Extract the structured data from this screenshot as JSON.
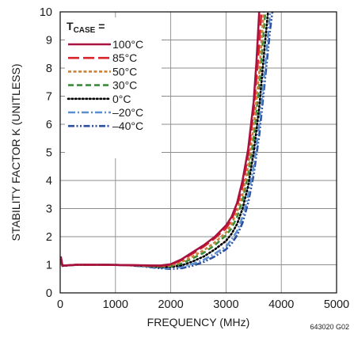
{
  "chart_data": {
    "type": "line",
    "xlabel": "FREQUENCY (MHz)",
    "ylabel": "STABILITY FACTOR K (UNITLESS)",
    "xlim": [
      0,
      5000
    ],
    "ylim": [
      0,
      10
    ],
    "x_ticks": [
      "0",
      "1000",
      "2000",
      "3000",
      "4000",
      "5000"
    ],
    "y_ticks": [
      "0",
      "1",
      "2",
      "3",
      "4",
      "5",
      "6",
      "7",
      "8",
      "9",
      "10"
    ],
    "grid": true,
    "legend_title_main": "T",
    "legend_title_sub": "CASE",
    "legend_title_suffix": " =",
    "legend_position": "top-left",
    "figure_id": "643020 G02",
    "series": [
      {
        "name": "100°C",
        "color": "#a8123e",
        "dash": "solid",
        "points": [
          [
            10,
            1.3
          ],
          [
            40,
            0.97
          ],
          [
            300,
            1.0
          ],
          [
            800,
            1.0
          ],
          [
            1200,
            0.99
          ],
          [
            1500,
            0.98
          ],
          [
            1800,
            0.97
          ],
          [
            2000,
            1.02
          ],
          [
            2200,
            1.2
          ],
          [
            2400,
            1.45
          ],
          [
            2600,
            1.7
          ],
          [
            2800,
            2.0
          ],
          [
            3000,
            2.4
          ],
          [
            3100,
            2.7
          ],
          [
            3200,
            3.2
          ],
          [
            3300,
            4.0
          ],
          [
            3400,
            5.1
          ],
          [
            3500,
            6.8
          ],
          [
            3550,
            8.2
          ],
          [
            3600,
            10.0
          ]
        ]
      },
      {
        "name": "85°C",
        "color": "#d8232a",
        "dash": "long-dash",
        "points": [
          [
            10,
            1.28
          ],
          [
            40,
            0.97
          ],
          [
            300,
            1.0
          ],
          [
            800,
            1.0
          ],
          [
            1200,
            0.99
          ],
          [
            1500,
            0.98
          ],
          [
            1800,
            0.96
          ],
          [
            2000,
            1.0
          ],
          [
            2200,
            1.17
          ],
          [
            2400,
            1.4
          ],
          [
            2600,
            1.65
          ],
          [
            2800,
            1.95
          ],
          [
            3000,
            2.3
          ],
          [
            3100,
            2.6
          ],
          [
            3200,
            3.1
          ],
          [
            3300,
            3.8
          ],
          [
            3400,
            4.9
          ],
          [
            3500,
            6.5
          ],
          [
            3580,
            8.3
          ],
          [
            3640,
            10.0
          ]
        ]
      },
      {
        "name": "50°C",
        "color": "#c8823a",
        "dash": "short-dash",
        "points": [
          [
            10,
            1.25
          ],
          [
            40,
            0.97
          ],
          [
            300,
            1.0
          ],
          [
            800,
            1.0
          ],
          [
            1200,
            0.99
          ],
          [
            1500,
            0.97
          ],
          [
            1800,
            0.95
          ],
          [
            2000,
            0.97
          ],
          [
            2200,
            1.1
          ],
          [
            2400,
            1.3
          ],
          [
            2600,
            1.52
          ],
          [
            2800,
            1.8
          ],
          [
            3000,
            2.15
          ],
          [
            3100,
            2.45
          ],
          [
            3200,
            2.9
          ],
          [
            3300,
            3.5
          ],
          [
            3400,
            4.5
          ],
          [
            3500,
            5.9
          ],
          [
            3600,
            7.8
          ],
          [
            3680,
            10.0
          ]
        ]
      },
      {
        "name": "30°C",
        "color": "#3c8c3c",
        "dash": "dash",
        "points": [
          [
            10,
            1.22
          ],
          [
            40,
            0.97
          ],
          [
            300,
            1.0
          ],
          [
            800,
            1.0
          ],
          [
            1200,
            0.99
          ],
          [
            1500,
            0.97
          ],
          [
            1800,
            0.94
          ],
          [
            2000,
            0.95
          ],
          [
            2200,
            1.05
          ],
          [
            2400,
            1.23
          ],
          [
            2600,
            1.43
          ],
          [
            2800,
            1.7
          ],
          [
            3000,
            2.05
          ],
          [
            3100,
            2.3
          ],
          [
            3200,
            2.7
          ],
          [
            3300,
            3.3
          ],
          [
            3400,
            4.2
          ],
          [
            3500,
            5.5
          ],
          [
            3600,
            7.4
          ],
          [
            3710,
            10.0
          ]
        ]
      },
      {
        "name": "0°C",
        "color": "#000000",
        "dash": "dot",
        "points": [
          [
            10,
            1.2
          ],
          [
            40,
            0.96
          ],
          [
            300,
            1.0
          ],
          [
            800,
            1.0
          ],
          [
            1200,
            0.99
          ],
          [
            1500,
            0.96
          ],
          [
            1800,
            0.92
          ],
          [
            2000,
            0.92
          ],
          [
            2200,
            0.98
          ],
          [
            2400,
            1.12
          ],
          [
            2600,
            1.3
          ],
          [
            2800,
            1.55
          ],
          [
            3000,
            1.85
          ],
          [
            3100,
            2.1
          ],
          [
            3200,
            2.45
          ],
          [
            3300,
            3.0
          ],
          [
            3400,
            3.8
          ],
          [
            3500,
            5.0
          ],
          [
            3600,
            6.6
          ],
          [
            3700,
            8.8
          ],
          [
            3760,
            10.0
          ]
        ]
      },
      {
        "name": "–20°C",
        "color": "#5b8fd0",
        "dash": "dash-dot",
        "points": [
          [
            10,
            1.18
          ],
          [
            40,
            0.96
          ],
          [
            300,
            1.0
          ],
          [
            800,
            1.0
          ],
          [
            1200,
            0.99
          ],
          [
            1500,
            0.95
          ],
          [
            1800,
            0.9
          ],
          [
            2000,
            0.88
          ],
          [
            2200,
            0.93
          ],
          [
            2400,
            1.03
          ],
          [
            2600,
            1.18
          ],
          [
            2800,
            1.4
          ],
          [
            3000,
            1.65
          ],
          [
            3100,
            1.9
          ],
          [
            3200,
            2.2
          ],
          [
            3300,
            2.7
          ],
          [
            3400,
            3.45
          ],
          [
            3500,
            4.5
          ],
          [
            3600,
            6.0
          ],
          [
            3700,
            7.9
          ],
          [
            3800,
            10.0
          ]
        ]
      },
      {
        "name": "–40°C",
        "color": "#2a4f9e",
        "dash": "dash-dot-dot",
        "points": [
          [
            10,
            1.15
          ],
          [
            40,
            0.96
          ],
          [
            300,
            1.0
          ],
          [
            800,
            1.0
          ],
          [
            1200,
            0.99
          ],
          [
            1500,
            0.94
          ],
          [
            1800,
            0.88
          ],
          [
            2000,
            0.85
          ],
          [
            2200,
            0.88
          ],
          [
            2400,
            0.97
          ],
          [
            2600,
            1.1
          ],
          [
            2800,
            1.3
          ],
          [
            3000,
            1.55
          ],
          [
            3100,
            1.75
          ],
          [
            3200,
            2.05
          ],
          [
            3300,
            2.5
          ],
          [
            3400,
            3.2
          ],
          [
            3500,
            4.2
          ],
          [
            3600,
            5.6
          ],
          [
            3700,
            7.5
          ],
          [
            3800,
            9.4
          ],
          [
            3840,
            10.0
          ]
        ]
      }
    ]
  }
}
